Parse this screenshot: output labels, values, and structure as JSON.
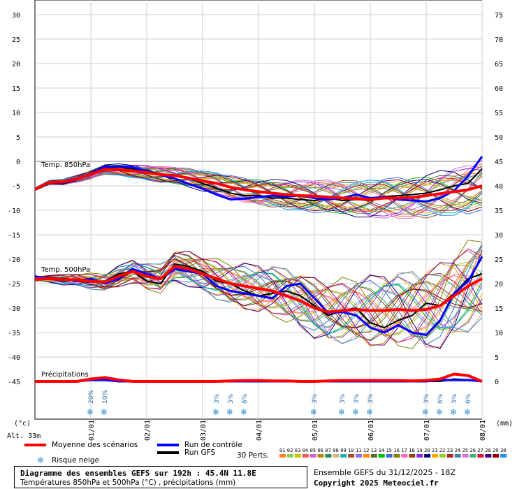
{
  "chart_data": {
    "type": "line",
    "title": "Diagramme des ensembles GEFS sur 192h : 45.4N 11.8E",
    "subtitle": "Températures 850hPa et 500hPa (°C) , précipitations (mm)",
    "run_info": "Ensemble GEFS du 31/12/2025 - 18Z",
    "copyright": "Copyright 2025 Meteociel.fr",
    "altitude": "Alt. 33m",
    "left_unit": "(°c)",
    "right_unit": "(mm)",
    "left_ticks": [
      30,
      25,
      20,
      15,
      10,
      5,
      0,
      -5,
      -10,
      -15,
      -20,
      -25,
      -30,
      -35,
      -40,
      -45
    ],
    "right_ticks": [
      75,
      70,
      65,
      60,
      55,
      50,
      45,
      40,
      35,
      30,
      25,
      20,
      15,
      10,
      5,
      0
    ],
    "ylim": [
      -45,
      30
    ],
    "precip_ylim": [
      0,
      75
    ],
    "x_tick_labels": [
      "01/01",
      "02/01",
      "03/01",
      "04/01",
      "05/01",
      "06/01",
      "07/01",
      "08/01"
    ],
    "x_step_hours": 6,
    "x_start_hour": 0,
    "x_end_hour": 192,
    "section_labels": [
      "Temp. 850hPa",
      "Temp. 500hPa",
      "Précipitations"
    ],
    "grid": true,
    "series": [
      {
        "name": "Moyenne des scénarios",
        "color": "#ff0000",
        "t850": [
          -5.7,
          -4.3,
          -4.2,
          -3.6,
          -2.7,
          -1.6,
          -1.7,
          -2.0,
          -2.3,
          -2.7,
          -2.9,
          -3.4,
          -4.0,
          -4.5,
          -5.3,
          -5.8,
          -6.2,
          -6.5,
          -6.8,
          -7.0,
          -7.1,
          -7.3,
          -7.5,
          -7.6,
          -7.8,
          -7.5,
          -7.5,
          -7.4,
          -7.0,
          -6.6,
          -6.2,
          -5.8,
          -5.0
        ],
        "t500": [
          -24.0,
          -24.0,
          -24.2,
          -24.2,
          -24.5,
          -24.7,
          -23.5,
          -22.5,
          -23.5,
          -24.0,
          -21.5,
          -22.0,
          -23.0,
          -24.0,
          -25.0,
          -25.5,
          -26.0,
          -26.5,
          -27.5,
          -28.5,
          -30.0,
          -30.8,
          -30.5,
          -30.3,
          -30.5,
          -30.5,
          -30.3,
          -30.5,
          -30.3,
          -29.5,
          -27.5,
          -25.5,
          -24.0
        ],
        "precip": [
          0,
          0,
          0,
          0,
          0.5,
          0.8,
          0.3,
          0,
          0,
          0,
          0,
          0,
          0,
          0,
          0.1,
          0.2,
          0.2,
          0.1,
          0.1,
          0,
          0,
          0.1,
          0.2,
          0.2,
          0.2,
          0.2,
          0.2,
          0.1,
          0.2,
          0.5,
          1.5,
          1.2,
          0
        ]
      },
      {
        "name": "Run de contrôle",
        "color": "#0000ff",
        "t850": [
          -5.7,
          -4.3,
          -4.4,
          -3.5,
          -2.5,
          -1.1,
          -1.0,
          -1.2,
          -2.0,
          -2.8,
          -3.5,
          -4.6,
          -5.6,
          -6.8,
          -7.8,
          -7.6,
          -7.3,
          -7.0,
          -7.2,
          -7.0,
          -7.5,
          -7.8,
          -7.5,
          -6.8,
          -7.5,
          -7.3,
          -7.8,
          -8.0,
          -8.2,
          -7.5,
          -6.0,
          -3.0,
          1.0
        ],
        "t500": [
          -23.5,
          -24.0,
          -24.0,
          -24.5,
          -24.0,
          -25.0,
          -24.0,
          -22.0,
          -23.0,
          -24.0,
          -22.0,
          -22.5,
          -23.0,
          -25.5,
          -26.5,
          -27.0,
          -27.5,
          -28.0,
          -25.5,
          -25.0,
          -28.0,
          -31.0,
          -30.8,
          -31.5,
          -34.0,
          -35.0,
          -33.5,
          -35.0,
          -35.5,
          -32.5,
          -27.0,
          -24.5,
          -19.5
        ],
        "precip": [
          0,
          0,
          0,
          0,
          0.3,
          0.3,
          0,
          0,
          0,
          0,
          0,
          0,
          0,
          0,
          0,
          0,
          0,
          0,
          0,
          0,
          0,
          0,
          0,
          0,
          0,
          0,
          0,
          0,
          0,
          0.3,
          0.3,
          0.3,
          0
        ]
      },
      {
        "name": "Run GFS",
        "color": "#000000",
        "t850": [
          -5.7,
          -4.5,
          -4.6,
          -3.8,
          -2.5,
          -1.2,
          -1.2,
          -1.5,
          -2.0,
          -2.5,
          -3.0,
          -3.5,
          -4.5,
          -5.5,
          -6.5,
          -7.0,
          -7.0,
          -7.5,
          -7.5,
          -7.8,
          -8.0,
          -7.5,
          -8.0,
          -7.8,
          -8.0,
          -7.2,
          -7.0,
          -6.8,
          -6.5,
          -5.8,
          -5.0,
          -4.5,
          -1.5
        ],
        "t500": [
          -23.8,
          -24.0,
          -24.5,
          -24.2,
          -24.5,
          -24.5,
          -23.0,
          -22.5,
          -24.5,
          -25.0,
          -21.0,
          -21.5,
          -22.5,
          -24.5,
          -25.0,
          -26.5,
          -27.5,
          -27.0,
          -26.5,
          -27.5,
          -29.5,
          -31.5,
          -30.5,
          -30.0,
          -33.0,
          -34.0,
          -32.5,
          -31.5,
          -29.0,
          -29.5,
          -27.0,
          -24.0,
          -23.0
        ],
        "precip": [
          0,
          0,
          0,
          0,
          0.3,
          0.5,
          0.2,
          0,
          0,
          0,
          0,
          0,
          0,
          0,
          0.2,
          0.3,
          0.2,
          0,
          0,
          0,
          0,
          0,
          0,
          0,
          0,
          0,
          0,
          0,
          0,
          0,
          0.5,
          0.3,
          0
        ]
      }
    ],
    "legend": {
      "mean_label": "Moyenne des scénarios",
      "control_label": "Run de contrôle",
      "gfs_label": "Run GFS",
      "snow_label": "Risque neige",
      "perts_label": "30 Perts."
    },
    "perturbations": [
      {
        "id": "01",
        "color": "#ff7f2a"
      },
      {
        "id": "02",
        "color": "#8fd14f"
      },
      {
        "id": "03",
        "color": "#c8c800"
      },
      {
        "id": "04",
        "color": "#ff5555"
      },
      {
        "id": "05",
        "color": "#cc66cc"
      },
      {
        "id": "06",
        "color": "#b8860b"
      },
      {
        "id": "07",
        "color": "#2e8b57"
      },
      {
        "id": "08",
        "color": "#d2b48c"
      },
      {
        "id": "09",
        "color": "#20b2aa"
      },
      {
        "id": "10",
        "color": "#a0522d"
      },
      {
        "id": "11",
        "color": "#9370db"
      },
      {
        "id": "12",
        "color": "#ff8c00"
      },
      {
        "id": "13",
        "color": "#556b2f"
      },
      {
        "id": "14",
        "color": "#00c000"
      },
      {
        "id": "15",
        "color": "#4169e1"
      },
      {
        "id": "16",
        "color": "#808000"
      },
      {
        "id": "17",
        "color": "#ff69b4"
      },
      {
        "id": "18",
        "color": "#8b4513"
      },
      {
        "id": "19",
        "color": "#8a2be2"
      },
      {
        "id": "20",
        "color": "#000080"
      },
      {
        "id": "21",
        "color": "#ffa500"
      },
      {
        "id": "22",
        "color": "#9acd32"
      },
      {
        "id": "23",
        "color": "#b22222"
      },
      {
        "id": "24",
        "color": "#4682b4"
      },
      {
        "id": "25",
        "color": "#da70d6"
      },
      {
        "id": "26",
        "color": "#3cb371"
      },
      {
        "id": "27",
        "color": "#dc143c"
      },
      {
        "id": "28",
        "color": "#4b0082"
      },
      {
        "id": "29",
        "color": "#8b0000"
      },
      {
        "id": "30",
        "color": "#1e90ff"
      }
    ],
    "snow_markers": [
      {
        "hour": 24,
        "pct": "20%"
      },
      {
        "hour": 30,
        "pct": "10%"
      },
      {
        "hour": 78,
        "pct": "3%"
      },
      {
        "hour": 84,
        "pct": "3%"
      },
      {
        "hour": 90,
        "pct": "6%"
      },
      {
        "hour": 120,
        "pct": "3%"
      },
      {
        "hour": 132,
        "pct": "3%"
      },
      {
        "hour": 138,
        "pct": "3%"
      },
      {
        "hour": 144,
        "pct": "3%"
      },
      {
        "hour": 168,
        "pct": "3%"
      },
      {
        "hour": 174,
        "pct": "6%"
      },
      {
        "hour": 180,
        "pct": "3%"
      },
      {
        "hour": 186,
        "pct": "6%"
      }
    ]
  }
}
